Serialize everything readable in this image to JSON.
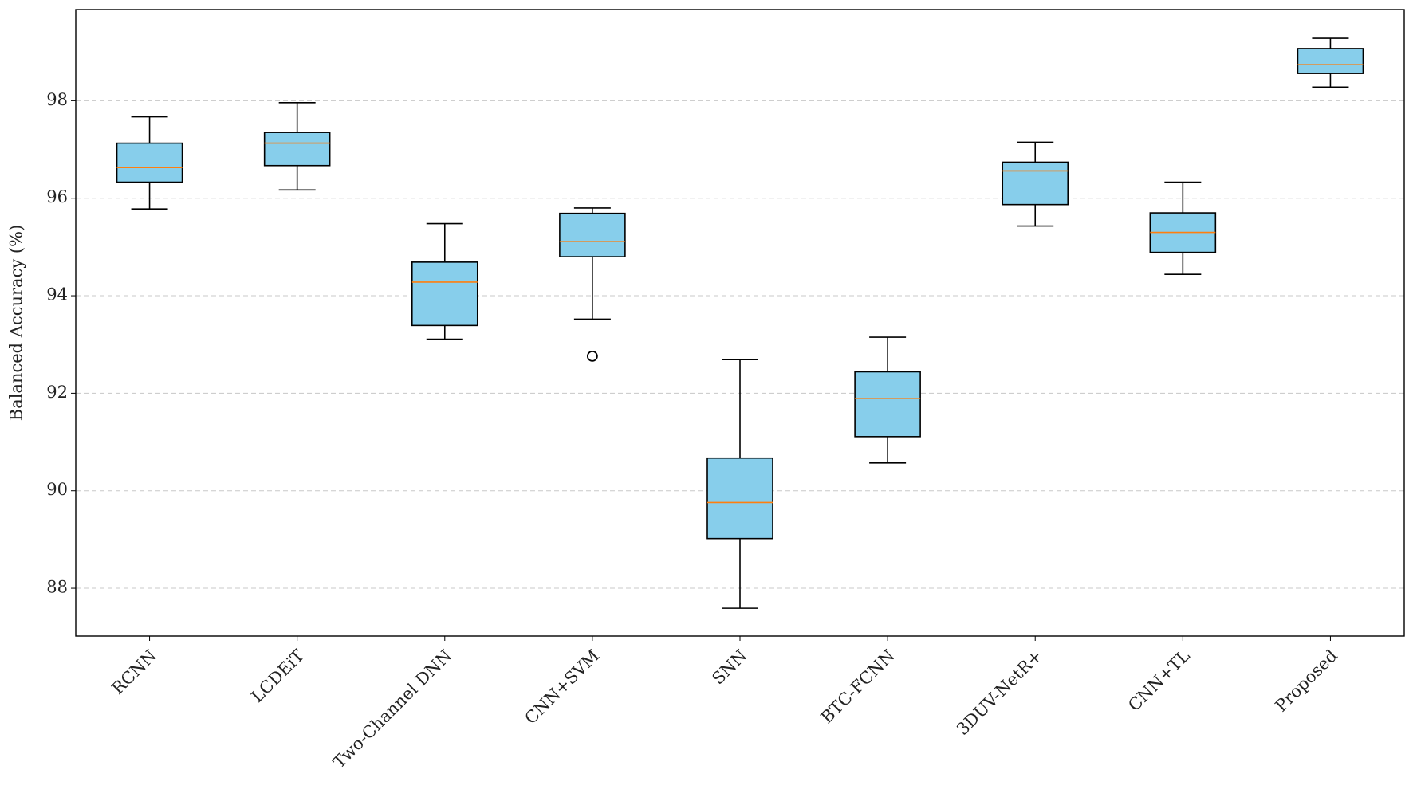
{
  "chart_data": {
    "type": "box",
    "ylabel": "Balanced Accuracy (%)",
    "categories": [
      "RCNN",
      "LCDEiT",
      "Two-Channel DNN",
      "CNN+SVM",
      "SNN",
      "BTC-FCNN",
      "3DUV-NetR+",
      "CNN+TL",
      "Proposed"
    ],
    "boxes": [
      {
        "whislo": 95.78,
        "q1": 96.33,
        "med": 96.63,
        "q3": 97.13,
        "whishi": 97.67
      },
      {
        "whislo": 96.17,
        "q1": 96.67,
        "med": 97.13,
        "q3": 97.35,
        "whishi": 97.96
      },
      {
        "whislo": 93.11,
        "q1": 93.39,
        "med": 94.28,
        "q3": 94.69,
        "whishi": 95.48
      },
      {
        "whislo": 93.52,
        "q1": 94.8,
        "med": 95.11,
        "q3": 95.69,
        "whishi": 95.8,
        "fliers": [
          92.76
        ]
      },
      {
        "whislo": 87.59,
        "q1": 89.02,
        "med": 89.76,
        "q3": 90.67,
        "whishi": 92.69
      },
      {
        "whislo": 90.57,
        "q1": 91.11,
        "med": 91.89,
        "q3": 92.44,
        "whishi": 93.15
      },
      {
        "whislo": 95.43,
        "q1": 95.87,
        "med": 96.56,
        "q3": 96.74,
        "whishi": 97.15
      },
      {
        "whislo": 94.44,
        "q1": 94.89,
        "med": 95.3,
        "q3": 95.7,
        "whishi": 96.33
      },
      {
        "whislo": 98.28,
        "q1": 98.56,
        "med": 98.74,
        "q3": 99.07,
        "whishi": 99.28
      }
    ],
    "box_color": "#87ceeb",
    "median_color": "#ff7f0e",
    "ylim": [
      87.02,
      99.87
    ],
    "yticks": [
      88,
      90,
      92,
      94,
      96,
      98
    ],
    "grid": true
  }
}
